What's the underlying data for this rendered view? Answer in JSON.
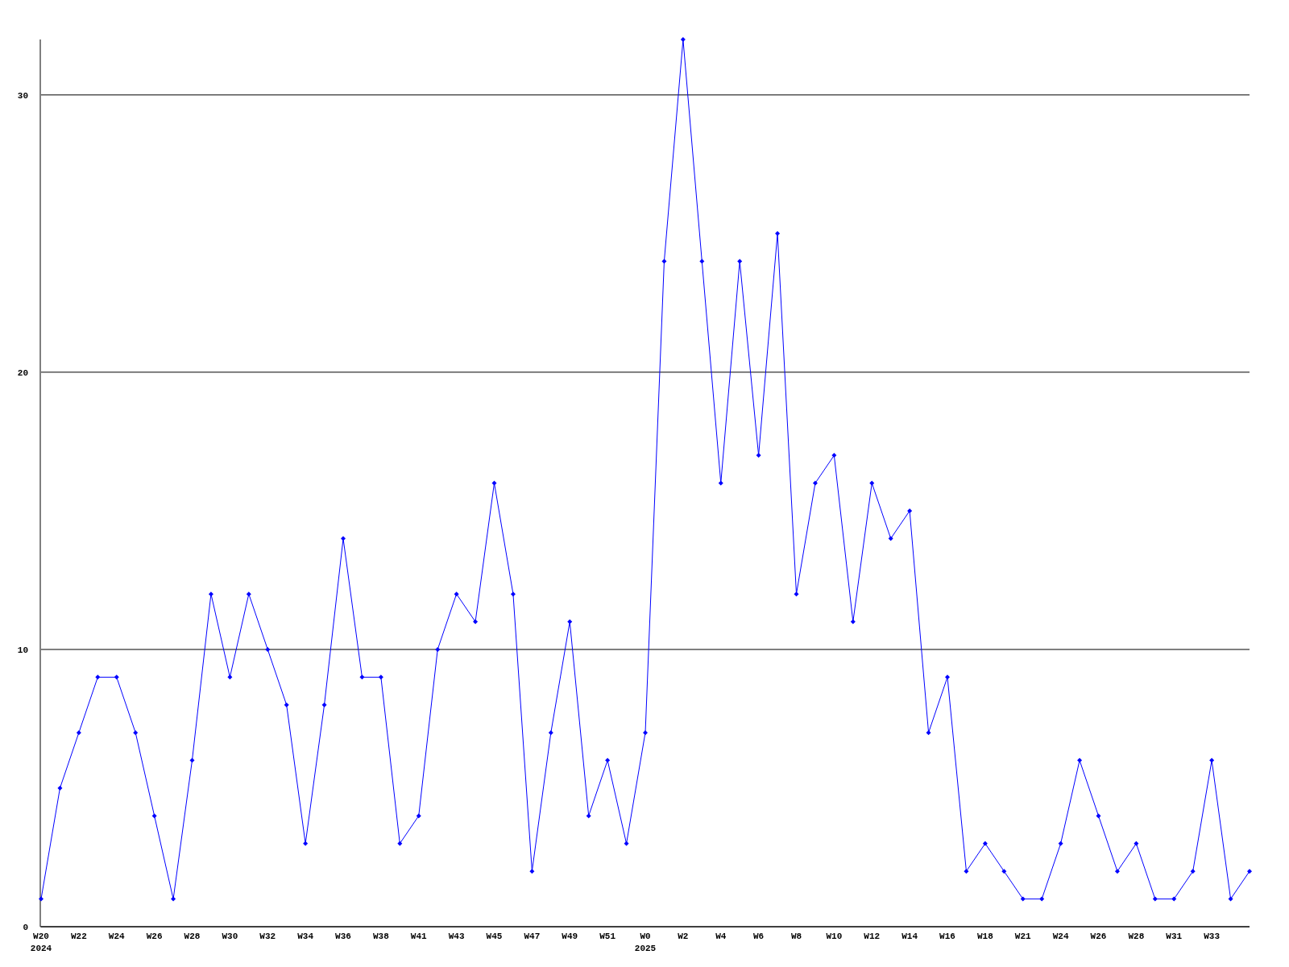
{
  "chart_data": {
    "type": "line",
    "categories": [
      "W20\n2024",
      null,
      "W22",
      null,
      "W24",
      null,
      "W26",
      null,
      "W28",
      null,
      "W30",
      null,
      "W32",
      null,
      "W34",
      null,
      "W36",
      null,
      "W38",
      null,
      "W41",
      null,
      "W43",
      null,
      "W45",
      null,
      "W47",
      null,
      "W49",
      null,
      "W51",
      null,
      "W0\n2025",
      null,
      "W2",
      null,
      "W4",
      null,
      "W6",
      null,
      "W8",
      null,
      "W10",
      null,
      "W12",
      null,
      "W14",
      null,
      "W16",
      null,
      "W18",
      null,
      "W21",
      null,
      "W24",
      null,
      "W26",
      null,
      "W28",
      null,
      "W31",
      null,
      "W33",
      null,
      null
    ],
    "series": [
      {
        "color": "#0000ff",
        "values": [
          1,
          5,
          7,
          9,
          9,
          7,
          4,
          1,
          6,
          12,
          9,
          12,
          10,
          8,
          3,
          8,
          14,
          9,
          9,
          3,
          4,
          10,
          12,
          11,
          16,
          12,
          2,
          7,
          11,
          4,
          6,
          3,
          7,
          24,
          32,
          24,
          16,
          24,
          17,
          25,
          12,
          16,
          17,
          11,
          16,
          14,
          15,
          7,
          9,
          2,
          3,
          2,
          1,
          1,
          3,
          6,
          4,
          2,
          3,
          1,
          1,
          2,
          6,
          1,
          2
        ]
      }
    ],
    "ylim": [
      0,
      32
    ],
    "yticks": [
      0,
      10,
      20,
      30
    ],
    "grid": "y",
    "marker": "diamond",
    "line_style": "solid"
  }
}
